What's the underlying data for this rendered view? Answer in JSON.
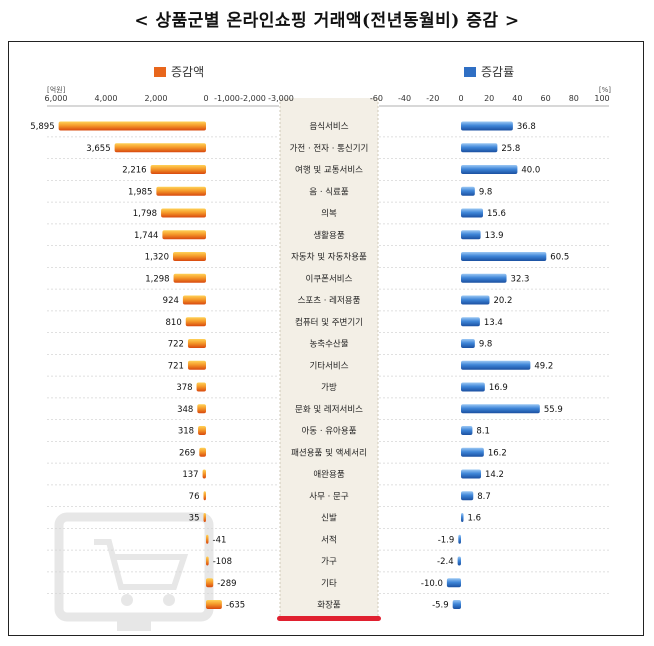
{
  "title": "< 상품군별 온라인쇼핑 거래액(전년동월비) 증감 >",
  "chart_data": [
    {
      "type": "bar",
      "orientation": "horizontal",
      "legend": "증감액",
      "unit": "[억원]",
      "x_ticks": [
        "6,000",
        "4,000",
        "2,000",
        "0",
        "-1,000",
        "-2,000",
        "-3,000"
      ],
      "xlim": [
        -3000,
        6000
      ],
      "bar_color": "#e8661c",
      "categories": [
        "음식서비스",
        "가전 · 전자 · 통신기기",
        "여행 및 교통서비스",
        "음 · 식료품",
        "의복",
        "생활용품",
        "자동차 및 자동차용품",
        "이쿠폰서비스",
        "스포츠 · 레저용품",
        "컴퓨터 및 주변기기",
        "농축수산물",
        "기타서비스",
        "가방",
        "문화 및 레저서비스",
        "아동 · 유아용품",
        "패션용품 및 액세서리",
        "애완용품",
        "사무 · 문구",
        "신발",
        "서적",
        "가구",
        "기타",
        "화장품"
      ],
      "values": [
        5895,
        3655,
        2216,
        1985,
        1798,
        1744,
        1320,
        1298,
        924,
        810,
        722,
        721,
        378,
        348,
        318,
        269,
        137,
        76,
        35,
        -41,
        -108,
        -289,
        -635
      ],
      "labels": [
        "5,895",
        "3,655",
        "2,216",
        "1,985",
        "1,798",
        "1,744",
        "1,320",
        "1,298",
        "924",
        "810",
        "722",
        "721",
        "378",
        "348",
        "318",
        "269",
        "137",
        "76",
        "35",
        "-41",
        "-108",
        "-289",
        "-635"
      ]
    },
    {
      "type": "bar",
      "orientation": "horizontal",
      "legend": "증감률",
      "unit": "[%]",
      "x_ticks": [
        "-60",
        "-40",
        "-20",
        "0",
        "20",
        "40",
        "60",
        "80",
        "100"
      ],
      "xlim": [
        -60,
        100
      ],
      "bar_color": "#2f6fc4",
      "values": [
        36.8,
        25.8,
        40.0,
        9.8,
        15.6,
        13.9,
        60.5,
        32.3,
        20.2,
        13.4,
        9.8,
        49.2,
        16.9,
        55.9,
        8.1,
        16.2,
        14.2,
        8.7,
        1.6,
        -1.9,
        -2.4,
        -10.0,
        -5.9
      ],
      "labels": [
        "36.8",
        "25.8",
        "40.0",
        "9.8",
        "15.6",
        "13.9",
        "60.5",
        "32.3",
        "20.2",
        "13.4",
        "9.8",
        "49.2",
        "16.9",
        "55.9",
        "8.1",
        "16.2",
        "14.2",
        "8.7",
        "1.6",
        "-1.9",
        "-2.4",
        "-10.0",
        "-5.9"
      ]
    }
  ]
}
